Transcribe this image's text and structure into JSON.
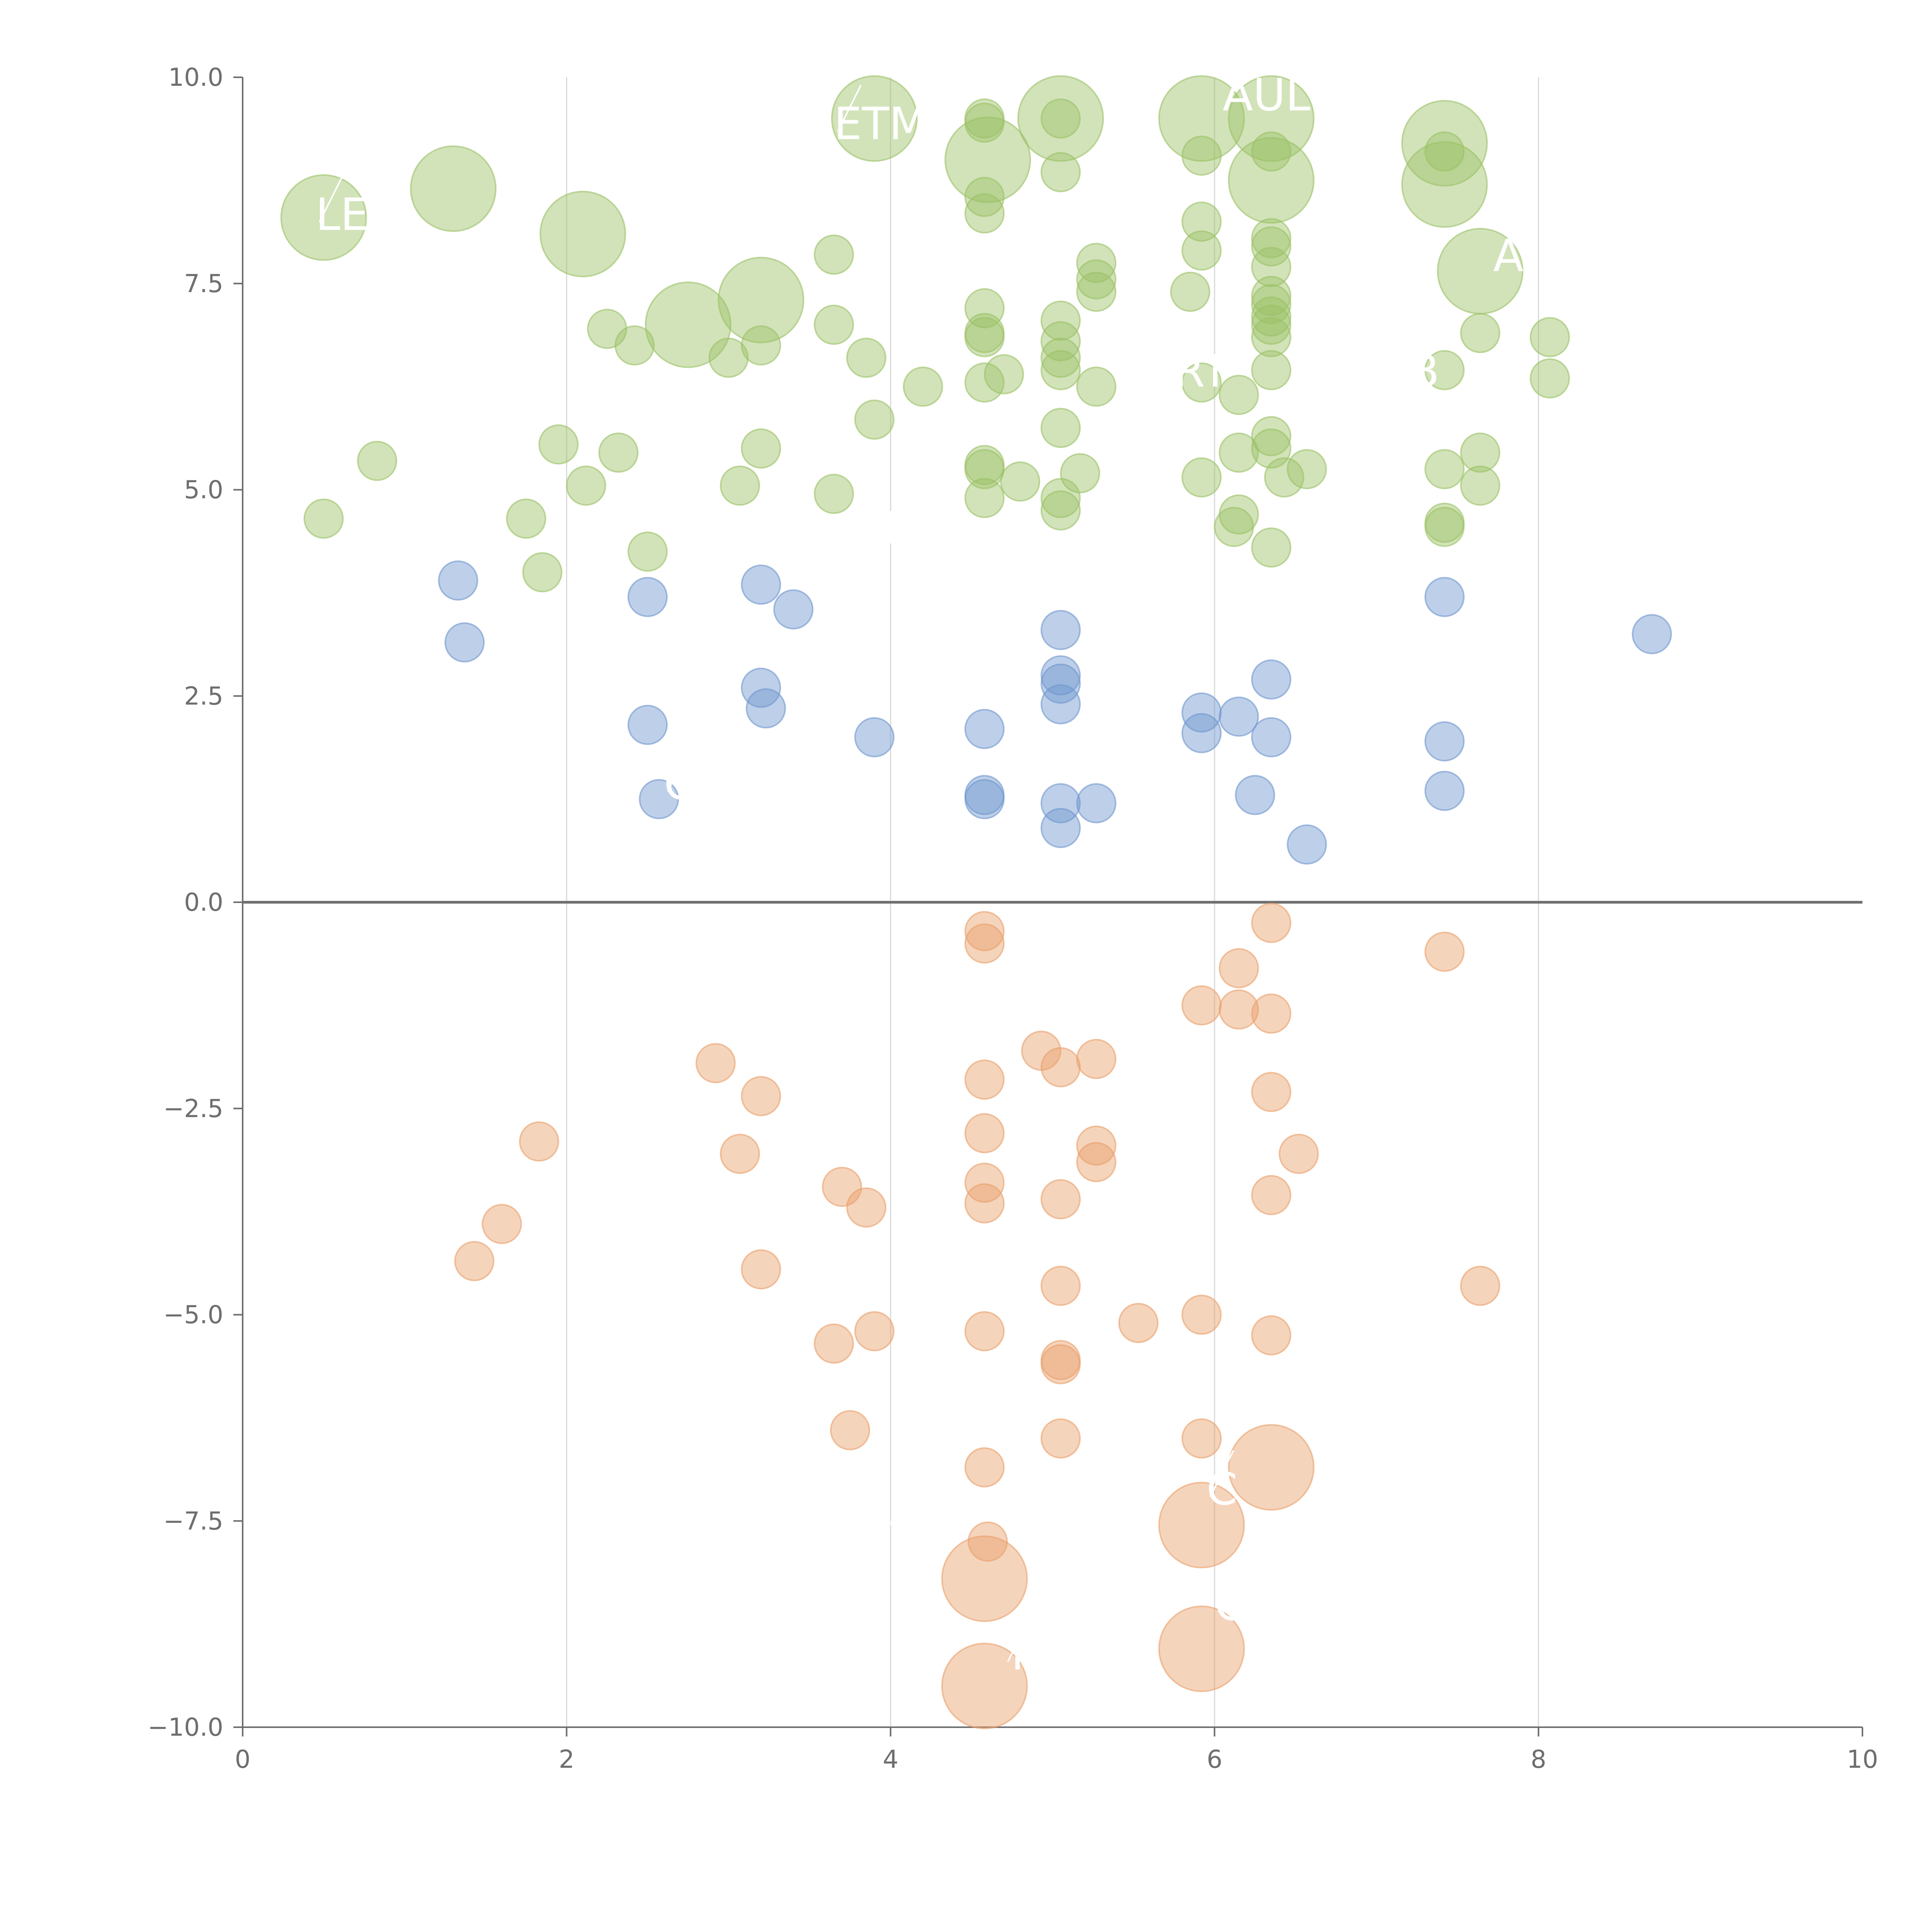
{
  "chart_data": {
    "type": "scatter",
    "title": "",
    "xlabel": "",
    "ylabel": "",
    "xlim": [
      0,
      10
    ],
    "ylim": [
      -10,
      10
    ],
    "x_ticks": [
      0,
      2,
      4,
      6,
      8,
      10
    ],
    "x_tick_labels": [
      "0",
      "2",
      "4",
      "6",
      "8",
      "10"
    ],
    "y_ticks": [
      10,
      7.5,
      5,
      2.5,
      0,
      -2.5,
      -5,
      -7.5,
      -10
    ],
    "y_tick_labels": [
      "10.0",
      "7.5",
      "5.0",
      "2.5",
      "0.0",
      "−2.5",
      "−5.0",
      "−7.5",
      "−10.0"
    ],
    "vertical_gridlines_at": [
      2,
      4,
      6,
      8
    ],
    "reference_line_y": 0,
    "colors": {
      "green": "#9bc165",
      "blue": "#6f96cf",
      "orange": "#e9a06b",
      "axis": "#6e6e6e",
      "grid": "#d9d9d9",
      "label": "#ffffff"
    },
    "series": [
      {
        "name": "green",
        "color": "#9bc165",
        "points": [
          {
            "x": 0.5,
            "y": 8.3,
            "size": 2
          },
          {
            "x": 1.3,
            "y": 8.65,
            "size": 2
          },
          {
            "x": 2.1,
            "y": 8.1,
            "size": 2
          },
          {
            "x": 3.9,
            "y": 9.5,
            "size": 2
          },
          {
            "x": 4.6,
            "y": 9.0,
            "size": 2
          },
          {
            "x": 5.05,
            "y": 9.5,
            "size": 2
          },
          {
            "x": 5.92,
            "y": 9.5,
            "size": 2
          },
          {
            "x": 6.35,
            "y": 9.5,
            "size": 2
          },
          {
            "x": 6.35,
            "y": 8.75,
            "size": 2
          },
          {
            "x": 7.42,
            "y": 9.2,
            "size": 2
          },
          {
            "x": 7.42,
            "y": 8.7,
            "size": 2
          },
          {
            "x": 7.64,
            "y": 7.65,
            "size": 2
          },
          {
            "x": 3.2,
            "y": 7.3,
            "size": 2
          },
          {
            "x": 2.75,
            "y": 7.0,
            "size": 2
          },
          {
            "x": 4.58,
            "y": 9.5,
            "size": 1
          },
          {
            "x": 4.58,
            "y": 9.45,
            "size": 1
          },
          {
            "x": 4.58,
            "y": 8.55,
            "size": 1
          },
          {
            "x": 4.58,
            "y": 8.35,
            "size": 1
          },
          {
            "x": 5.05,
            "y": 9.5,
            "size": 1
          },
          {
            "x": 5.05,
            "y": 8.85,
            "size": 1
          },
          {
            "x": 5.92,
            "y": 9.05,
            "size": 1
          },
          {
            "x": 6.35,
            "y": 9.1,
            "size": 1
          },
          {
            "x": 7.42,
            "y": 9.1,
            "size": 1
          },
          {
            "x": 3.65,
            "y": 7.85,
            "size": 1
          },
          {
            "x": 5.92,
            "y": 8.25,
            "size": 1
          },
          {
            "x": 5.92,
            "y": 7.9,
            "size": 1
          },
          {
            "x": 6.35,
            "y": 8.05,
            "size": 1
          },
          {
            "x": 6.35,
            "y": 7.95,
            "size": 1
          },
          {
            "x": 6.35,
            "y": 7.7,
            "size": 1
          },
          {
            "x": 5.27,
            "y": 7.75,
            "size": 1
          },
          {
            "x": 5.27,
            "y": 7.55,
            "size": 1
          },
          {
            "x": 5.27,
            "y": 7.4,
            "size": 1
          },
          {
            "x": 5.85,
            "y": 7.4,
            "size": 1
          },
          {
            "x": 4.58,
            "y": 7.2,
            "size": 1
          },
          {
            "x": 5.05,
            "y": 7.05,
            "size": 1
          },
          {
            "x": 6.35,
            "y": 7.35,
            "size": 1
          },
          {
            "x": 6.35,
            "y": 7.25,
            "size": 1
          },
          {
            "x": 6.35,
            "y": 7.1,
            "size": 1
          },
          {
            "x": 6.35,
            "y": 7.0,
            "size": 1
          },
          {
            "x": 6.35,
            "y": 6.85,
            "size": 1
          },
          {
            "x": 2.25,
            "y": 6.95,
            "size": 1
          },
          {
            "x": 2.42,
            "y": 6.75,
            "size": 1
          },
          {
            "x": 3.0,
            "y": 6.6,
            "size": 1
          },
          {
            "x": 3.2,
            "y": 6.75,
            "size": 1
          },
          {
            "x": 3.65,
            "y": 7.0,
            "size": 1
          },
          {
            "x": 3.85,
            "y": 6.6,
            "size": 1
          },
          {
            "x": 4.58,
            "y": 6.9,
            "size": 1
          },
          {
            "x": 4.58,
            "y": 6.85,
            "size": 1
          },
          {
            "x": 5.05,
            "y": 6.8,
            "size": 1
          },
          {
            "x": 5.05,
            "y": 6.6,
            "size": 1
          },
          {
            "x": 5.05,
            "y": 6.45,
            "size": 1
          },
          {
            "x": 7.64,
            "y": 6.9,
            "size": 1
          },
          {
            "x": 8.07,
            "y": 6.85,
            "size": 1
          },
          {
            "x": 4.2,
            "y": 6.25,
            "size": 1
          },
          {
            "x": 4.58,
            "y": 6.3,
            "size": 1
          },
          {
            "x": 4.7,
            "y": 6.4,
            "size": 1
          },
          {
            "x": 5.27,
            "y": 6.25,
            "size": 1
          },
          {
            "x": 5.92,
            "y": 6.3,
            "size": 1
          },
          {
            "x": 6.15,
            "y": 6.15,
            "size": 1
          },
          {
            "x": 6.35,
            "y": 6.45,
            "size": 1
          },
          {
            "x": 7.42,
            "y": 6.45,
            "size": 1
          },
          {
            "x": 8.07,
            "y": 6.35,
            "size": 1
          },
          {
            "x": 3.9,
            "y": 5.85,
            "size": 1
          },
          {
            "x": 5.05,
            "y": 5.75,
            "size": 1
          },
          {
            "x": 0.83,
            "y": 5.35,
            "size": 1
          },
          {
            "x": 1.95,
            "y": 5.55,
            "size": 1
          },
          {
            "x": 2.32,
            "y": 5.45,
            "size": 1
          },
          {
            "x": 3.2,
            "y": 5.5,
            "size": 1
          },
          {
            "x": 4.58,
            "y": 5.3,
            "size": 1
          },
          {
            "x": 4.58,
            "y": 5.25,
            "size": 1
          },
          {
            "x": 5.17,
            "y": 5.2,
            "size": 1
          },
          {
            "x": 5.92,
            "y": 5.15,
            "size": 1
          },
          {
            "x": 6.15,
            "y": 5.45,
            "size": 1
          },
          {
            "x": 6.35,
            "y": 5.65,
            "size": 1
          },
          {
            "x": 6.35,
            "y": 5.5,
            "size": 1
          },
          {
            "x": 6.43,
            "y": 5.15,
            "size": 1
          },
          {
            "x": 6.57,
            "y": 5.25,
            "size": 1
          },
          {
            "x": 7.42,
            "y": 5.25,
            "size": 1
          },
          {
            "x": 7.64,
            "y": 5.45,
            "size": 1
          },
          {
            "x": 7.64,
            "y": 5.05,
            "size": 1
          },
          {
            "x": 0.5,
            "y": 4.65,
            "size": 1
          },
          {
            "x": 1.75,
            "y": 4.65,
            "size": 1
          },
          {
            "x": 1.85,
            "y": 4.0,
            "size": 1
          },
          {
            "x": 2.12,
            "y": 5.05,
            "size": 1
          },
          {
            "x": 2.5,
            "y": 4.25,
            "size": 1
          },
          {
            "x": 3.07,
            "y": 5.05,
            "size": 1
          },
          {
            "x": 3.65,
            "y": 4.95,
            "size": 1
          },
          {
            "x": 4.58,
            "y": 4.9,
            "size": 1
          },
          {
            "x": 4.8,
            "y": 5.1,
            "size": 1
          },
          {
            "x": 5.05,
            "y": 4.9,
            "size": 1
          },
          {
            "x": 5.05,
            "y": 4.75,
            "size": 1
          },
          {
            "x": 6.12,
            "y": 4.55,
            "size": 1
          },
          {
            "x": 6.15,
            "y": 4.7,
            "size": 1
          },
          {
            "x": 6.35,
            "y": 4.3,
            "size": 1
          },
          {
            "x": 7.42,
            "y": 4.6,
            "size": 1
          },
          {
            "x": 7.42,
            "y": 4.55,
            "size": 1
          }
        ]
      },
      {
        "name": "blue",
        "color": "#6f96cf",
        "points": [
          {
            "x": 1.33,
            "y": 3.9,
            "size": 1
          },
          {
            "x": 1.37,
            "y": 3.15,
            "size": 1
          },
          {
            "x": 2.5,
            "y": 3.7,
            "size": 1
          },
          {
            "x": 2.5,
            "y": 2.15,
            "size": 1
          },
          {
            "x": 2.57,
            "y": 1.25,
            "size": 1
          },
          {
            "x": 3.2,
            "y": 3.85,
            "size": 1
          },
          {
            "x": 3.4,
            "y": 3.55,
            "size": 1
          },
          {
            "x": 3.2,
            "y": 2.6,
            "size": 1
          },
          {
            "x": 3.23,
            "y": 2.35,
            "size": 1
          },
          {
            "x": 3.9,
            "y": 2.0,
            "size": 1
          },
          {
            "x": 4.58,
            "y": 2.1,
            "size": 1
          },
          {
            "x": 4.58,
            "y": 1.3,
            "size": 1
          },
          {
            "x": 4.58,
            "y": 1.25,
            "size": 1
          },
          {
            "x": 5.05,
            "y": 3.3,
            "size": 1
          },
          {
            "x": 5.05,
            "y": 2.75,
            "size": 1
          },
          {
            "x": 5.05,
            "y": 2.65,
            "size": 1
          },
          {
            "x": 5.05,
            "y": 2.4,
            "size": 1
          },
          {
            "x": 5.05,
            "y": 1.2,
            "size": 1
          },
          {
            "x": 5.05,
            "y": 0.9,
            "size": 1
          },
          {
            "x": 5.27,
            "y": 1.2,
            "size": 1
          },
          {
            "x": 5.92,
            "y": 2.3,
            "size": 1
          },
          {
            "x": 5.92,
            "y": 2.05,
            "size": 1
          },
          {
            "x": 6.15,
            "y": 2.25,
            "size": 1
          },
          {
            "x": 6.25,
            "y": 1.3,
            "size": 1
          },
          {
            "x": 6.35,
            "y": 2.7,
            "size": 1
          },
          {
            "x": 6.35,
            "y": 2.0,
            "size": 1
          },
          {
            "x": 6.57,
            "y": 0.7,
            "size": 1
          },
          {
            "x": 7.42,
            "y": 3.7,
            "size": 1
          },
          {
            "x": 7.42,
            "y": 1.95,
            "size": 1
          },
          {
            "x": 7.42,
            "y": 1.35,
            "size": 1
          },
          {
            "x": 8.7,
            "y": 3.25,
            "size": 1
          }
        ]
      },
      {
        "name": "orange",
        "color": "#e9a06b",
        "points": [
          {
            "x": 4.58,
            "y": -0.35,
            "size": 1
          },
          {
            "x": 4.58,
            "y": -0.5,
            "size": 1
          },
          {
            "x": 6.35,
            "y": -0.25,
            "size": 1
          },
          {
            "x": 6.15,
            "y": -0.8,
            "size": 1
          },
          {
            "x": 7.42,
            "y": -0.6,
            "size": 1
          },
          {
            "x": 5.92,
            "y": -1.25,
            "size": 1
          },
          {
            "x": 6.15,
            "y": -1.3,
            "size": 1
          },
          {
            "x": 6.35,
            "y": -1.35,
            "size": 1
          },
          {
            "x": 4.93,
            "y": -1.8,
            "size": 1
          },
          {
            "x": 5.05,
            "y": -2.0,
            "size": 1
          },
          {
            "x": 5.27,
            "y": -1.9,
            "size": 1
          },
          {
            "x": 2.92,
            "y": -1.95,
            "size": 1
          },
          {
            "x": 3.2,
            "y": -2.35,
            "size": 1
          },
          {
            "x": 4.58,
            "y": -2.15,
            "size": 1
          },
          {
            "x": 6.35,
            "y": -2.3,
            "size": 1
          },
          {
            "x": 1.83,
            "y": -2.9,
            "size": 1
          },
          {
            "x": 3.07,
            "y": -3.05,
            "size": 1
          },
          {
            "x": 4.58,
            "y": -2.8,
            "size": 1
          },
          {
            "x": 5.27,
            "y": -2.95,
            "size": 1
          },
          {
            "x": 5.27,
            "y": -3.15,
            "size": 1
          },
          {
            "x": 6.52,
            "y": -3.05,
            "size": 1
          },
          {
            "x": 1.6,
            "y": -3.9,
            "size": 1
          },
          {
            "x": 1.43,
            "y": -4.35,
            "size": 1
          },
          {
            "x": 3.7,
            "y": -3.45,
            "size": 1
          },
          {
            "x": 3.85,
            "y": -3.7,
            "size": 1
          },
          {
            "x": 4.58,
            "y": -3.4,
            "size": 1
          },
          {
            "x": 4.58,
            "y": -3.65,
            "size": 1
          },
          {
            "x": 5.05,
            "y": -3.6,
            "size": 1
          },
          {
            "x": 6.35,
            "y": -3.55,
            "size": 1
          },
          {
            "x": 3.2,
            "y": -4.45,
            "size": 1
          },
          {
            "x": 5.05,
            "y": -4.65,
            "size": 1
          },
          {
            "x": 7.64,
            "y": -4.65,
            "size": 1
          },
          {
            "x": 3.65,
            "y": -5.35,
            "size": 1
          },
          {
            "x": 3.9,
            "y": -5.2,
            "size": 1
          },
          {
            "x": 4.58,
            "y": -5.2,
            "size": 1
          },
          {
            "x": 5.05,
            "y": -5.55,
            "size": 1
          },
          {
            "x": 5.05,
            "y": -5.6,
            "size": 1
          },
          {
            "x": 5.53,
            "y": -5.1,
            "size": 1
          },
          {
            "x": 5.92,
            "y": -5.0,
            "size": 1
          },
          {
            "x": 6.35,
            "y": -5.25,
            "size": 1
          },
          {
            "x": 3.75,
            "y": -6.4,
            "size": 1
          },
          {
            "x": 4.58,
            "y": -6.85,
            "size": 1
          },
          {
            "x": 5.05,
            "y": -6.5,
            "size": 1
          },
          {
            "x": 5.92,
            "y": -6.5,
            "size": 1
          },
          {
            "x": 4.6,
            "y": -7.75,
            "size": 1
          },
          {
            "x": 6.35,
            "y": -6.85,
            "size": 2
          },
          {
            "x": 5.92,
            "y": -7.55,
            "size": 2
          },
          {
            "x": 4.58,
            "y": -8.2,
            "size": 2
          },
          {
            "x": 5.92,
            "y": -9.05,
            "size": 2
          },
          {
            "x": 4.58,
            "y": -9.5,
            "size": 2
          }
        ]
      }
    ],
    "annotations": [
      {
        "text": "LE",
        "x": 0.45,
        "y": 8.15
      },
      {
        "text": "ETM",
        "x": 3.65,
        "y": 9.25
      },
      {
        "text": "AUL",
        "x": 6.05,
        "y": 9.6
      },
      {
        "text": "A",
        "x": 7.72,
        "y": 7.65
      },
      {
        "text": "RT",
        "x": 5.75,
        "y": 6.25
      },
      {
        "text": "B",
        "x": 7.2,
        "y": 6.25
      },
      {
        "text": "E",
        "x": 3.95,
        "y": 4.35
      },
      {
        "text": "C",
        "x": 2.6,
        "y": 1.25
      },
      {
        "text": "C",
        "x": 5.95,
        "y": -7.3
      },
      {
        "text": "TR",
        "x": 4.0,
        "y": -7.9
      },
      {
        "text": "C",
        "x": 6.0,
        "y": -8.7
      },
      {
        "text": "Y",
        "x": 4.7,
        "y": -9.3
      }
    ]
  }
}
